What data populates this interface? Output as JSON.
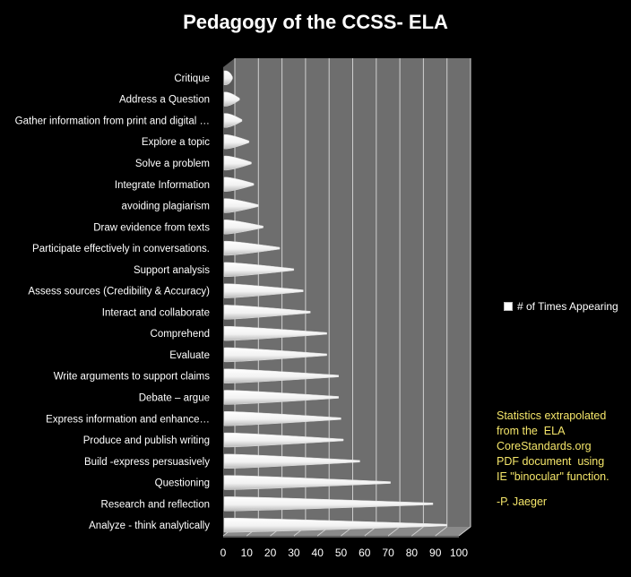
{
  "chart_data": {
    "type": "bar",
    "title": "Pedagogy of the CCSS- ELA",
    "xlabel": "",
    "ylabel": "",
    "xlim": [
      0,
      100
    ],
    "grid": true,
    "legend_position": "right",
    "x_ticks": [
      "0",
      "10",
      "20",
      "30",
      "40",
      "50",
      "60",
      "70",
      "80",
      "90",
      "100"
    ],
    "categories": [
      "Analyze - think analytically",
      "Research and reflection",
      "Questioning",
      "Build  -express persuasively",
      "Produce and publish writing",
      "Express information  and enhance…",
      "Debate – argue",
      "Write arguments to support claims",
      "Evaluate",
      "Comprehend",
      "Interact and collaborate",
      "Assess sources (Credibility & Accuracy)",
      "Support analysis",
      "Participate effectively in conversations.",
      "Draw evidence from texts",
      "avoiding plagiarism",
      "Integrate Information",
      "Solve a problem",
      "Explore a topic",
      "Gather information from print and digital …",
      "Address a Question",
      "Critique"
    ],
    "series": [
      {
        "name": "# of Times Appearing",
        "values": [
          92,
          86,
          68,
          55,
          48,
          47,
          46,
          46,
          41,
          41,
          34,
          31,
          27,
          21,
          14,
          12,
          10,
          9,
          8,
          5,
          4,
          1
        ]
      }
    ],
    "colors": {
      "bar": "#ffffff",
      "wall": "#6e6e6e",
      "grid": "#d0d0d0",
      "background": "#000000",
      "note": "#f5e66a"
    }
  },
  "note": {
    "lines": [
      "Statistics extrapolated",
      "from the  ELA",
      "CoreStandards.org",
      "PDF document  using",
      "IE \"binocular\" function."
    ],
    "author": "-P. Jaeger"
  }
}
